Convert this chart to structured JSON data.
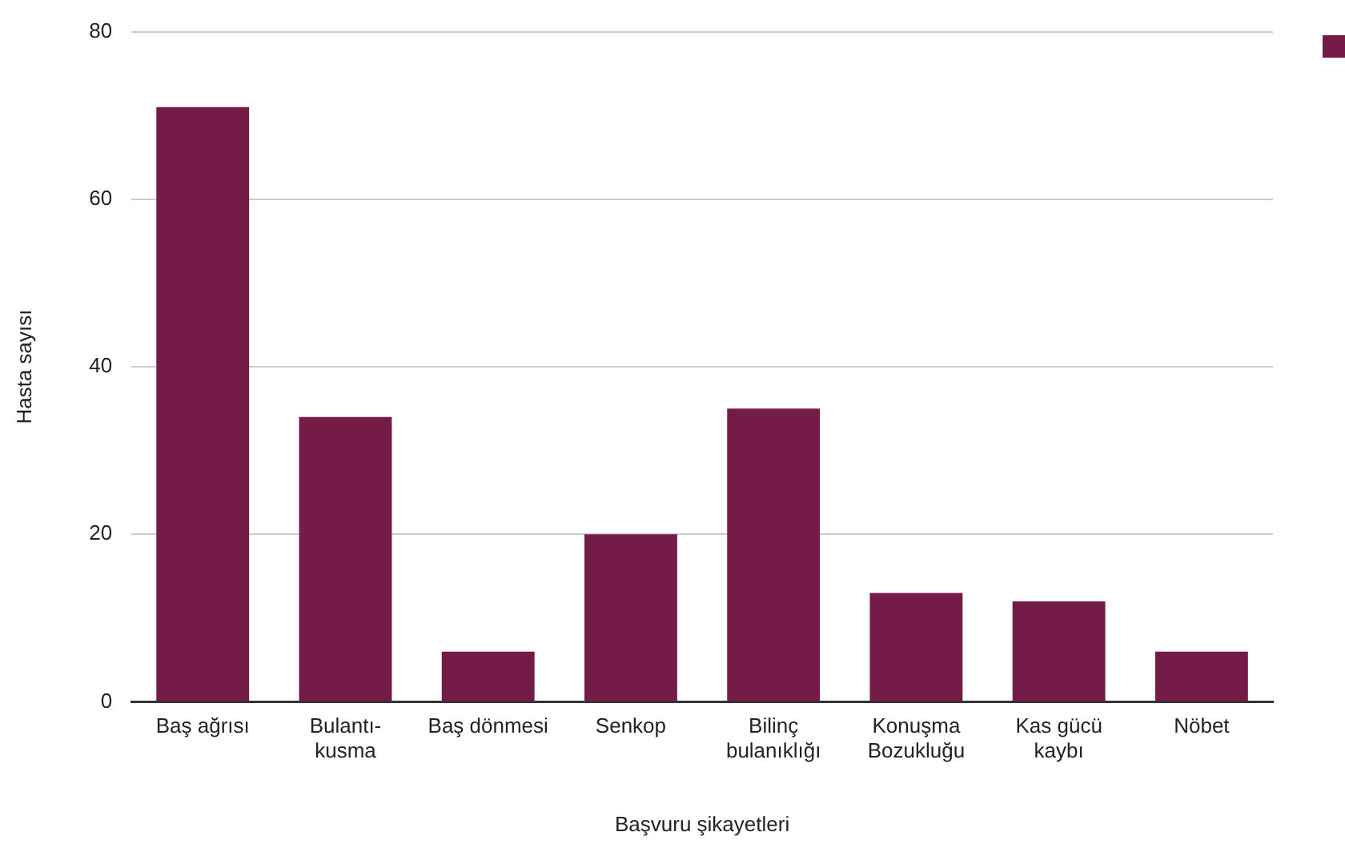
{
  "chart_data": {
    "type": "bar",
    "xlabel": "Başvuru şikayetleri",
    "ylabel": "Hasta sayısı",
    "categories": [
      "Baş ağrısı",
      "Bulantı-kusma",
      "Baş dönmesi",
      "Senkop",
      "Bilinç bulanıklığı",
      "Konuşma Bozukluğu",
      "Kas gücü kaybı",
      "Nöbet"
    ],
    "values": [
      71,
      34,
      6,
      20,
      35,
      13,
      12,
      6
    ],
    "color": "#741b47",
    "ylim": [
      0,
      80
    ],
    "yticks": [
      0,
      20,
      40,
      60,
      80
    ],
    "grid": "y",
    "legend": false
  }
}
